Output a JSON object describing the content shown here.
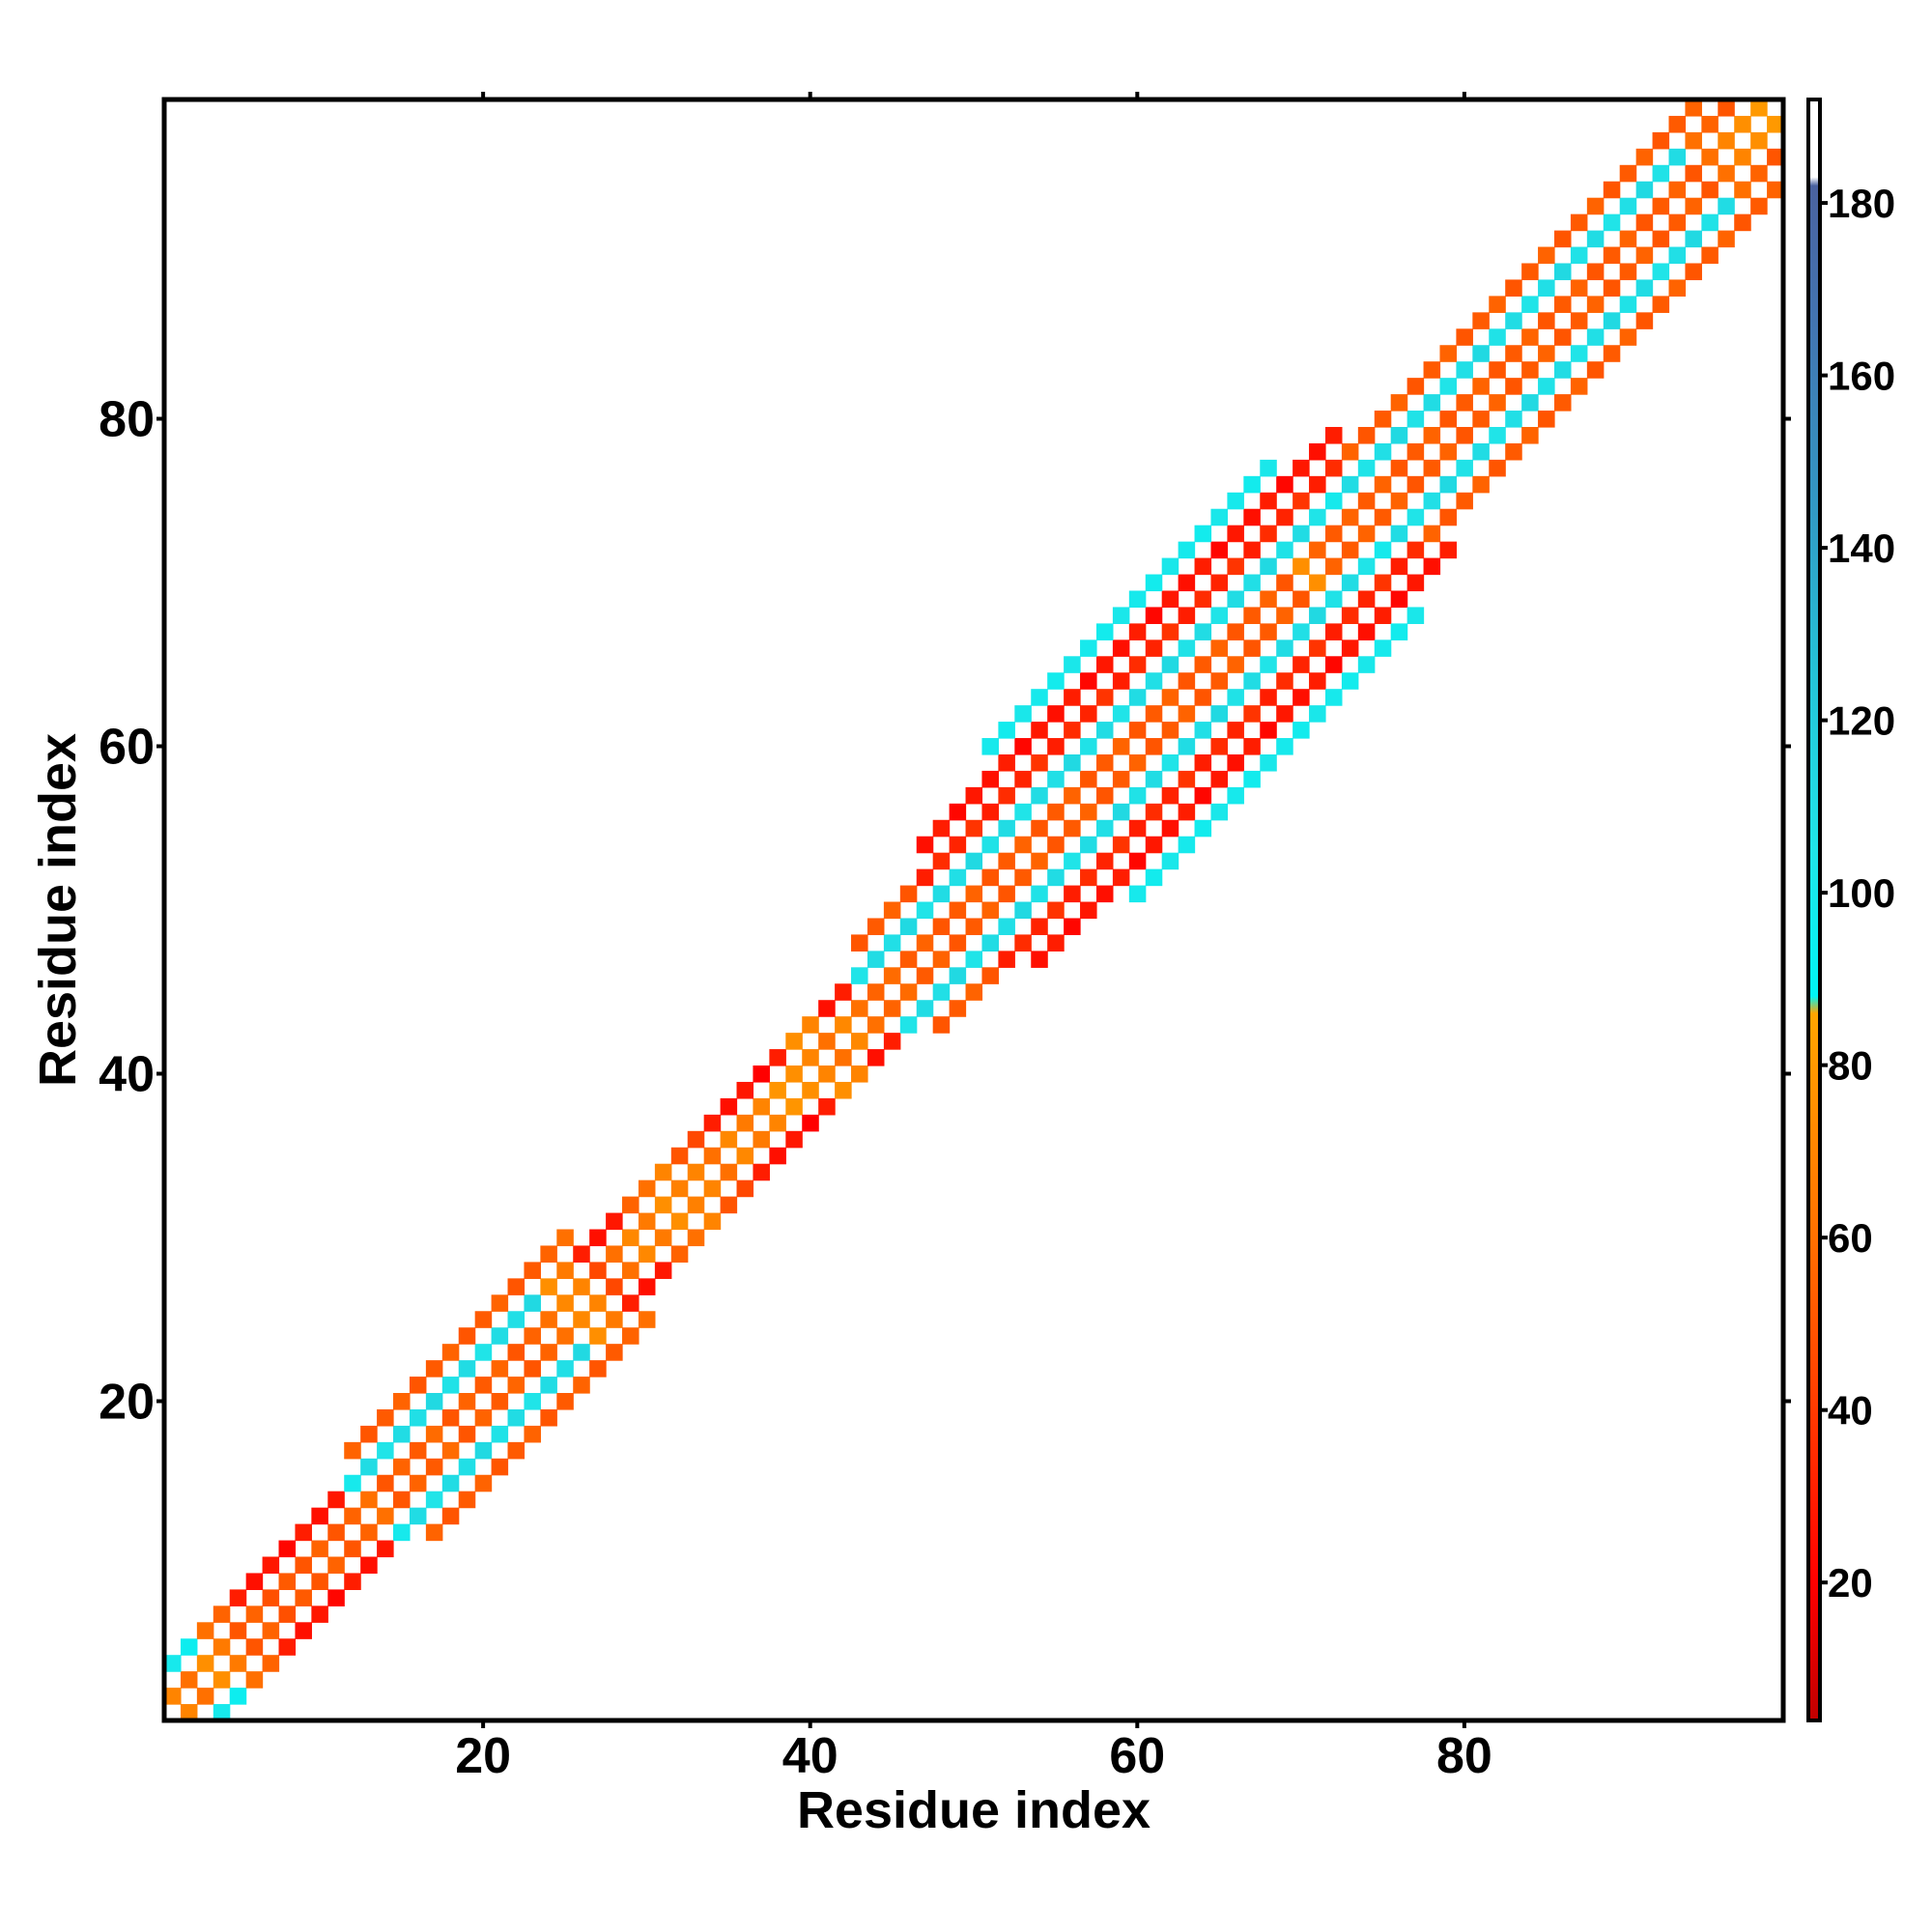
{
  "chart_data": {
    "type": "heatmap",
    "xlabel": "Residue index",
    "ylabel": "Residue index",
    "xlim": [
      0.5,
      99.5
    ],
    "ylim": [
      0.5,
      99.5
    ],
    "xticks": [
      20,
      40,
      60,
      80
    ],
    "yticks": [
      20,
      40,
      60,
      80
    ],
    "symmetric": true,
    "clim": [
      4,
      192
    ],
    "cticks": [
      20,
      40,
      60,
      80,
      100,
      120,
      140,
      160,
      180
    ],
    "colorscale": [
      [
        4,
        "#c00000"
      ],
      [
        20,
        "#ff0000"
      ],
      [
        40,
        "#ff3a00"
      ],
      [
        60,
        "#ff7000"
      ],
      [
        86,
        "#ffa500"
      ],
      [
        88,
        "#00f4f4"
      ],
      [
        105,
        "#20e4e8"
      ],
      [
        125,
        "#24c4d8"
      ],
      [
        145,
        "#3298c4"
      ],
      [
        165,
        "#4276b2"
      ],
      [
        182,
        "#4a62a0"
      ],
      [
        183,
        "#ffffff"
      ],
      [
        192,
        "#ffffff"
      ]
    ],
    "diagonals": [
      {
        "offset": 1,
        "start": 1,
        "values": [
          70,
          60,
          75,
          65,
          50,
          55,
          48,
          52,
          50,
          55,
          50,
          55,
          60,
          50,
          55,
          52,
          58,
          50,
          55,
          52,
          56,
          50,
          55,
          60,
          72,
          70,
          45,
          60,
          72,
          65,
          75,
          68,
          70,
          60,
          72,
          65,
          70,
          78,
          75,
          70,
          60,
          72,
          60,
          55,
          58,
          52,
          55,
          50,
          52,
          55,
          50,
          52,
          55,
          50,
          52,
          55,
          50,
          52,
          55,
          50,
          52,
          55,
          50,
          52,
          55,
          50,
          52,
          55,
          50,
          75,
          55,
          52,
          55,
          52,
          55,
          50,
          52,
          55,
          50,
          52,
          55,
          50,
          52,
          55,
          50,
          52,
          55,
          50,
          52,
          55,
          50,
          52,
          55,
          50,
          60,
          70,
          75,
          80
        ]
      },
      {
        "offset": 3,
        "start": 1,
        "values": [
          100,
          95,
          60,
          55,
          30,
          25,
          28,
          22,
          30,
          25,
          28,
          100,
          110,
          105,
          110,
          108,
          112,
          106,
          110,
          105,
          110,
          108,
          112,
          75,
          65,
          30,
          25,
          28,
          55,
          60,
          70,
          50,
          45,
          30,
          25,
          28,
          20,
          30,
          75,
          70,
          25,
          30,
          105,
          110,
          108,
          112,
          105,
          110,
          108,
          112,
          106,
          110,
          105,
          110,
          108,
          112,
          106,
          110,
          105,
          110,
          108,
          112,
          106,
          110,
          105,
          110,
          108,
          112,
          106,
          110,
          105,
          100,
          110,
          105,
          108,
          112,
          106,
          110,
          105,
          108,
          112,
          106,
          110,
          105,
          108,
          112,
          106,
          110,
          105,
          108,
          112,
          106,
          110,
          60,
          55,
          50
        ]
      },
      {
        "offset": 5,
        "start": 12,
        "values": [
          55,
          50,
          52,
          55,
          50,
          52,
          55,
          50,
          52,
          55,
          50,
          52,
          55,
          60
        ]
      },
      {
        "offset": 5,
        "start": 43,
        "values": [
          50,
          52,
          55,
          50,
          30,
          35,
          32,
          38,
          30,
          35,
          32,
          38,
          30,
          35,
          32,
          38,
          30,
          35,
          32,
          38,
          30,
          35,
          32,
          38,
          30,
          35,
          32,
          38,
          30,
          35,
          55,
          50,
          52,
          55,
          50,
          52,
          55,
          50,
          52,
          55,
          50,
          52,
          55,
          50,
          52,
          55,
          50,
          52,
          55,
          50,
          52,
          55
        ]
      },
      {
        "offset": 7,
        "start": 47,
        "values": [
          25,
          30,
          22,
          28,
          25,
          30,
          22,
          28,
          25,
          30,
          22,
          28,
          25,
          30,
          22,
          28,
          25,
          30,
          22,
          28,
          25,
          30,
          22,
          28,
          25,
          30
        ]
      },
      {
        "offset": 9,
        "start": 51,
        "values": [
          100,
          98,
          102,
          100,
          98,
          102,
          100,
          98,
          102,
          100,
          98,
          102,
          100,
          98,
          102,
          100,
          98,
          102
        ]
      }
    ]
  }
}
